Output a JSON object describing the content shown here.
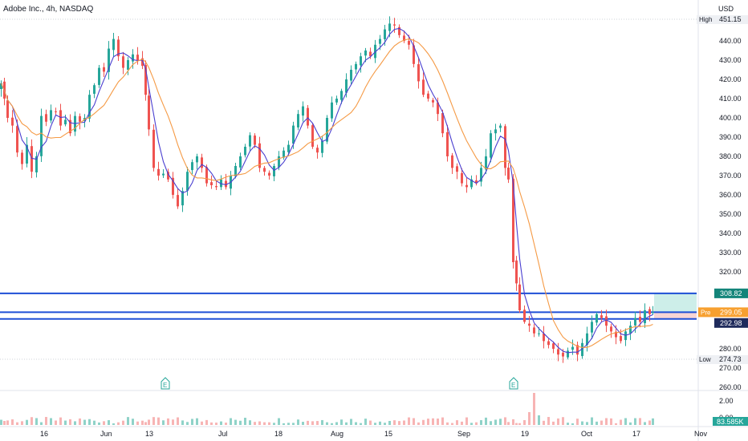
{
  "header": {
    "title": "Adobe Inc., 4h, NASDAQ",
    "currency": "USD"
  },
  "colors": {
    "up": "#26a69a",
    "down": "#ef5350",
    "ma_fast": "#4a3fd0",
    "ma_slow": "#f59a45",
    "hline": "#1e4fd6",
    "vol_up": "#8fd2c8",
    "vol_down": "#f7b4b4"
  },
  "chart_data": {
    "type": "candlestick",
    "title": "Adobe Inc., 4h, NASDAQ",
    "price_axis": {
      "range": [
        255,
        457
      ],
      "ticks": [
        440,
        430,
        420,
        410,
        400,
        390,
        380,
        370,
        360,
        350,
        340,
        330,
        320,
        280,
        270,
        260
      ]
    },
    "time_axis": {
      "labels": [
        "16",
        "Jun",
        "13",
        "Jul",
        "18",
        "Aug",
        "15",
        "Sep",
        "19",
        "Oct",
        "17",
        "Nov"
      ]
    },
    "markers": {
      "high": {
        "label": "High",
        "value": "451.15"
      },
      "low": {
        "label": "Low",
        "value": "274.73"
      }
    },
    "price_labels": [
      {
        "value": "308.82",
        "style": "teal"
      },
      {
        "value": "299.05",
        "style": "orange",
        "prefix": "Pre"
      },
      {
        "value": "292.98",
        "style": "dark"
      }
    ],
    "horizontal_lines": [
      308.8,
      299.0,
      295.5
    ],
    "earnings_events": [
      {
        "label": "E",
        "near": "Jun"
      },
      {
        "label": "E",
        "near": "Sep"
      }
    ],
    "volume": {
      "ticks": [
        "2.00",
        "0.00"
      ],
      "current": "83.585K"
    },
    "series": [
      {
        "kind": "price",
        "close": [
          {
            "x": 0,
            "y": 418
          },
          {
            "x": 4,
            "y": 410
          },
          {
            "x": 8,
            "y": 400
          },
          {
            "x": 14,
            "y": 396
          },
          {
            "x": 20,
            "y": 382
          },
          {
            "x": 26,
            "y": 376
          },
          {
            "x": 32,
            "y": 386
          },
          {
            "x": 38,
            "y": 372
          },
          {
            "x": 44,
            "y": 380
          },
          {
            "x": 50,
            "y": 401
          },
          {
            "x": 56,
            "y": 398
          },
          {
            "x": 62,
            "y": 404
          },
          {
            "x": 68,
            "y": 403
          },
          {
            "x": 74,
            "y": 396
          },
          {
            "x": 80,
            "y": 399
          },
          {
            "x": 86,
            "y": 392
          },
          {
            "x": 92,
            "y": 401
          },
          {
            "x": 98,
            "y": 398
          },
          {
            "x": 104,
            "y": 400
          },
          {
            "x": 110,
            "y": 412
          },
          {
            "x": 116,
            "y": 417
          },
          {
            "x": 122,
            "y": 426
          },
          {
            "x": 128,
            "y": 424
          },
          {
            "x": 134,
            "y": 436
          },
          {
            "x": 140,
            "y": 441
          },
          {
            "x": 146,
            "y": 432
          },
          {
            "x": 152,
            "y": 426
          },
          {
            "x": 158,
            "y": 430
          },
          {
            "x": 164,
            "y": 433
          },
          {
            "x": 170,
            "y": 430
          },
          {
            "x": 176,
            "y": 427
          },
          {
            "x": 180,
            "y": 412
          },
          {
            "x": 184,
            "y": 394
          },
          {
            "x": 190,
            "y": 374
          },
          {
            "x": 196,
            "y": 370
          },
          {
            "x": 202,
            "y": 371
          },
          {
            "x": 208,
            "y": 368
          },
          {
            "x": 214,
            "y": 360
          },
          {
            "x": 220,
            "y": 354
          },
          {
            "x": 226,
            "y": 362
          },
          {
            "x": 232,
            "y": 372
          },
          {
            "x": 238,
            "y": 377
          },
          {
            "x": 244,
            "y": 380
          },
          {
            "x": 250,
            "y": 374
          },
          {
            "x": 256,
            "y": 366
          },
          {
            "x": 262,
            "y": 365
          },
          {
            "x": 268,
            "y": 364
          },
          {
            "x": 274,
            "y": 368
          },
          {
            "x": 280,
            "y": 364
          },
          {
            "x": 286,
            "y": 370
          },
          {
            "x": 292,
            "y": 375
          },
          {
            "x": 298,
            "y": 380
          },
          {
            "x": 304,
            "y": 385
          },
          {
            "x": 310,
            "y": 391
          },
          {
            "x": 316,
            "y": 386
          },
          {
            "x": 322,
            "y": 374
          },
          {
            "x": 328,
            "y": 372
          },
          {
            "x": 334,
            "y": 370
          },
          {
            "x": 340,
            "y": 375
          },
          {
            "x": 346,
            "y": 380
          },
          {
            "x": 352,
            "y": 383
          },
          {
            "x": 358,
            "y": 386
          },
          {
            "x": 364,
            "y": 396
          },
          {
            "x": 370,
            "y": 402
          },
          {
            "x": 376,
            "y": 406
          },
          {
            "x": 382,
            "y": 396
          },
          {
            "x": 388,
            "y": 385
          },
          {
            "x": 394,
            "y": 382
          },
          {
            "x": 400,
            "y": 388
          },
          {
            "x": 406,
            "y": 400
          },
          {
            "x": 412,
            "y": 408
          },
          {
            "x": 418,
            "y": 410
          },
          {
            "x": 424,
            "y": 414
          },
          {
            "x": 430,
            "y": 420
          },
          {
            "x": 436,
            "y": 425
          },
          {
            "x": 442,
            "y": 428
          },
          {
            "x": 448,
            "y": 432
          },
          {
            "x": 454,
            "y": 435
          },
          {
            "x": 460,
            "y": 432
          },
          {
            "x": 466,
            "y": 438
          },
          {
            "x": 472,
            "y": 441
          },
          {
            "x": 478,
            "y": 446
          },
          {
            "x": 484,
            "y": 449
          },
          {
            "x": 490,
            "y": 448
          },
          {
            "x": 496,
            "y": 443
          },
          {
            "x": 502,
            "y": 440
          },
          {
            "x": 508,
            "y": 438
          },
          {
            "x": 514,
            "y": 428
          },
          {
            "x": 520,
            "y": 419
          },
          {
            "x": 526,
            "y": 412
          },
          {
            "x": 532,
            "y": 410
          },
          {
            "x": 538,
            "y": 408
          },
          {
            "x": 544,
            "y": 402
          },
          {
            "x": 550,
            "y": 392
          },
          {
            "x": 556,
            "y": 380
          },
          {
            "x": 562,
            "y": 374
          },
          {
            "x": 568,
            "y": 372
          },
          {
            "x": 574,
            "y": 366
          },
          {
            "x": 580,
            "y": 364
          },
          {
            "x": 586,
            "y": 368
          },
          {
            "x": 592,
            "y": 366
          },
          {
            "x": 598,
            "y": 374
          },
          {
            "x": 604,
            "y": 380
          },
          {
            "x": 610,
            "y": 392
          },
          {
            "x": 616,
            "y": 394
          },
          {
            "x": 622,
            "y": 396
          },
          {
            "x": 628,
            "y": 374
          },
          {
            "x": 632,
            "y": 368
          },
          {
            "x": 638,
            "y": 325
          },
          {
            "x": 642,
            "y": 314
          },
          {
            "x": 646,
            "y": 300
          },
          {
            "x": 652,
            "y": 294
          },
          {
            "x": 658,
            "y": 292
          },
          {
            "x": 664,
            "y": 288
          },
          {
            "x": 670,
            "y": 288
          },
          {
            "x": 676,
            "y": 284
          },
          {
            "x": 682,
            "y": 282
          },
          {
            "x": 688,
            "y": 280
          },
          {
            "x": 694,
            "y": 277
          },
          {
            "x": 700,
            "y": 276
          },
          {
            "x": 706,
            "y": 279
          },
          {
            "x": 712,
            "y": 281
          },
          {
            "x": 718,
            "y": 277
          },
          {
            "x": 724,
            "y": 283
          },
          {
            "x": 730,
            "y": 288
          },
          {
            "x": 736,
            "y": 294
          },
          {
            "x": 742,
            "y": 298
          },
          {
            "x": 748,
            "y": 296
          },
          {
            "x": 754,
            "y": 292
          },
          {
            "x": 760,
            "y": 289
          },
          {
            "x": 766,
            "y": 286
          },
          {
            "x": 772,
            "y": 284
          },
          {
            "x": 778,
            "y": 289
          },
          {
            "x": 784,
            "y": 292
          },
          {
            "x": 790,
            "y": 296
          },
          {
            "x": 796,
            "y": 294
          },
          {
            "x": 802,
            "y": 300
          },
          {
            "x": 808,
            "y": 298
          },
          {
            "x": 812,
            "y": 299
          }
        ]
      }
    ]
  }
}
